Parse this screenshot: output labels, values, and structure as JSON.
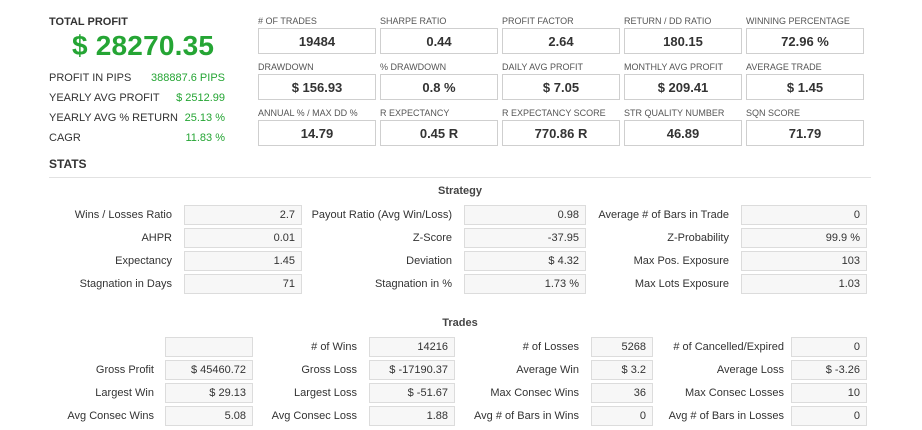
{
  "summary": {
    "total_profit_label": "TOTAL PROFIT",
    "total_profit_value": "$ 28270.35",
    "rows": [
      {
        "label": "PROFIT IN PIPS",
        "value": "388887.6 PIPS"
      },
      {
        "label": "YEARLY AVG PROFIT",
        "value": "$ 2512.99"
      },
      {
        "label": "YEARLY AVG % RETURN",
        "value": "25.13 %"
      },
      {
        "label": "CAGR",
        "value": "11.83 %"
      }
    ]
  },
  "metrics": [
    {
      "label": "# OF TRADES",
      "value": "19484"
    },
    {
      "label": "SHARPE RATIO",
      "value": "0.44"
    },
    {
      "label": "PROFIT FACTOR",
      "value": "2.64"
    },
    {
      "label": "RETURN / DD RATIO",
      "value": "180.15"
    },
    {
      "label": "WINNING PERCENTAGE",
      "value": "72.96 %"
    },
    {
      "label": "DRAWDOWN",
      "value": "$ 156.93"
    },
    {
      "label": "% DRAWDOWN",
      "value": "0.8 %"
    },
    {
      "label": "DAILY AVG PROFIT",
      "value": "$ 7.05"
    },
    {
      "label": "MONTHLY AVG PROFIT",
      "value": "$ 209.41"
    },
    {
      "label": "AVERAGE TRADE",
      "value": "$ 1.45"
    },
    {
      "label": "ANNUAL % / MAX DD %",
      "value": "14.79"
    },
    {
      "label": "R EXPECTANCY",
      "value": "0.45 R"
    },
    {
      "label": "R EXPECTANCY SCORE",
      "value": "770.86 R"
    },
    {
      "label": "STR QUALITY NUMBER",
      "value": "46.89"
    },
    {
      "label": "SQN SCORE",
      "value": "71.79"
    }
  ],
  "stats_title": "STATS",
  "strategy": {
    "title": "Strategy",
    "rows": [
      [
        {
          "label": "Wins / Losses Ratio",
          "value": "2.7"
        },
        {
          "label": "Payout Ratio (Avg Win/Loss)",
          "value": "0.98"
        },
        {
          "label": "Average # of Bars in Trade",
          "value": "0"
        }
      ],
      [
        {
          "label": "AHPR",
          "value": "0.01"
        },
        {
          "label": "Z-Score",
          "value": "-37.95"
        },
        {
          "label": "Z-Probability",
          "value": "99.9 %"
        }
      ],
      [
        {
          "label": "Expectancy",
          "value": "1.45"
        },
        {
          "label": "Deviation",
          "value": "$ 4.32"
        },
        {
          "label": "Max Pos. Exposure",
          "value": "103"
        }
      ],
      [
        {
          "label": "Stagnation in Days",
          "value": "71"
        },
        {
          "label": "Stagnation in %",
          "value": "1.73 %"
        },
        {
          "label": "Max Lots Exposure",
          "value": "1.03"
        }
      ]
    ]
  },
  "trades": {
    "title": "Trades",
    "rows": [
      [
        {
          "label": "",
          "value": ""
        },
        {
          "label": "# of Wins",
          "value": "14216"
        },
        {
          "label": "# of Losses",
          "value": "5268"
        },
        {
          "label": "# of Cancelled/Expired",
          "value": "0"
        }
      ],
      [
        {
          "label": "Gross Profit",
          "value": "$ 45460.72"
        },
        {
          "label": "Gross Loss",
          "value": "$ -17190.37"
        },
        {
          "label": "Average Win",
          "value": "$ 3.2"
        },
        {
          "label": "Average Loss",
          "value": "$ -3.26"
        }
      ],
      [
        {
          "label": "Largest Win",
          "value": "$ 29.13"
        },
        {
          "label": "Largest Loss",
          "value": "$ -51.67"
        },
        {
          "label": "Max Consec Wins",
          "value": "36"
        },
        {
          "label": "Max Consec Losses",
          "value": "10"
        }
      ],
      [
        {
          "label": "Avg Consec Wins",
          "value": "5.08"
        },
        {
          "label": "Avg Consec Loss",
          "value": "1.88"
        },
        {
          "label": "Avg # of Bars in Wins",
          "value": "0"
        },
        {
          "label": "Avg # of Bars in Losses",
          "value": "0"
        }
      ]
    ]
  }
}
